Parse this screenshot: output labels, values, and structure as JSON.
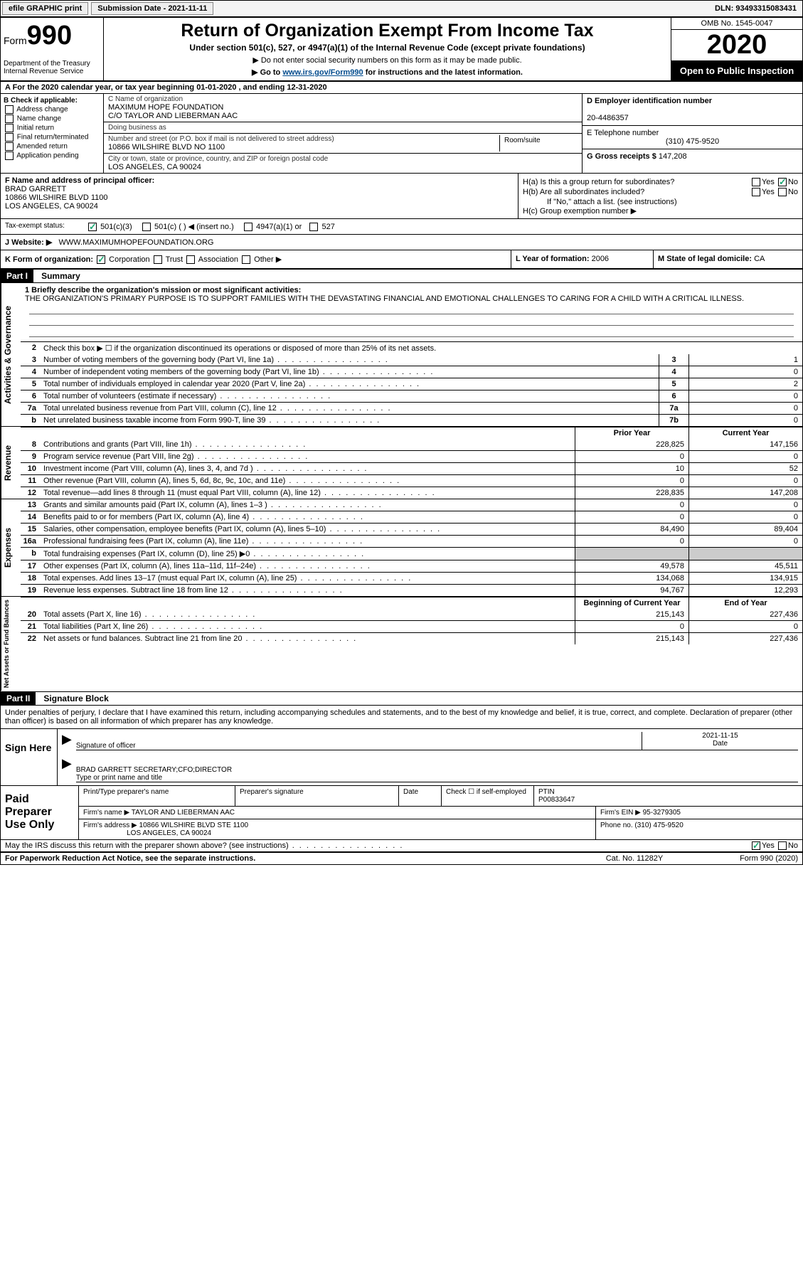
{
  "topbar": {
    "efile": "efile GRAPHIC print",
    "submission": "Submission Date - 2021-11-11",
    "dln": "DLN: 93493315083431"
  },
  "header": {
    "form_word": "Form",
    "form_num": "990",
    "dept": "Department of the Treasury\nInternal Revenue Service",
    "title": "Return of Organization Exempt From Income Tax",
    "sub": "Under section 501(c), 527, or 4947(a)(1) of the Internal Revenue Code (except private foundations)",
    "p2": "▶ Do not enter social security numbers on this form as it may be made public.",
    "p3_pre": "▶ Go to ",
    "p3_link": "www.irs.gov/Form990",
    "p3_post": " for instructions and the latest information.",
    "omb": "OMB No. 1545-0047",
    "year": "2020",
    "open": "Open to Public Inspection"
  },
  "rowA": "A For the 2020 calendar year, or tax year beginning 01-01-2020    , and ending 12-31-2020",
  "secB": {
    "label": "B Check if applicable:",
    "items": [
      "Address change",
      "Name change",
      "Initial return",
      "Final return/terminated",
      "Amended return",
      "Application pending"
    ]
  },
  "secC": {
    "name_lbl": "C Name of organization",
    "name1": "MAXIMUM HOPE FOUNDATION",
    "name2": "C/O TAYLOR AND LIEBERMAN AAC",
    "dba_lbl": "Doing business as",
    "dba": "",
    "street_lbl": "Number and street (or P.O. box if mail is not delivered to street address)",
    "street": "10866 WILSHIRE BLVD NO 1100",
    "room_lbl": "Room/suite",
    "city_lbl": "City or town, state or province, country, and ZIP or foreign postal code",
    "city": "LOS ANGELES, CA  90024"
  },
  "secD": {
    "ein_lbl": "D Employer identification number",
    "ein": "20-4486357",
    "tel_lbl": "E Telephone number",
    "tel": "(310) 475-9520",
    "g_lbl": "G Gross receipts $",
    "g_val": "147,208"
  },
  "secF": {
    "lbl": "F  Name and address of principal officer:",
    "name": "BRAD GARRETT",
    "addr1": "10866 WILSHIRE BLVD 1100",
    "addr2": "LOS ANGELES, CA  90024"
  },
  "secH": {
    "a": "H(a)  Is this a group return for subordinates?",
    "ayn": "No",
    "b": "H(b)  Are all subordinates included?",
    "bnote": "If \"No,\" attach a list. (see instructions)",
    "c": "H(c)  Group exemption number ▶"
  },
  "tax": {
    "lbl": "Tax-exempt status:",
    "opts": [
      "501(c)(3)",
      "501(c) (  ) ◀ (insert no.)",
      "4947(a)(1) or",
      "527"
    ]
  },
  "web": {
    "lbl": "J    Website: ▶",
    "val": "WWW.MAXIMUMHOPEFOUNDATION.ORG"
  },
  "klm": {
    "k": "K Form of organization:",
    "kopts": [
      "Corporation",
      "Trust",
      "Association",
      "Other ▶"
    ],
    "l_lbl": "L Year of formation:",
    "l_val": "2006",
    "m_lbl": "M State of legal domicile:",
    "m_val": "CA"
  },
  "part1": {
    "num": "Part I",
    "title": "Summary"
  },
  "mission": {
    "q": "1 Briefly describe the organization's mission or most significant activities:",
    "txt": "THE ORGANIZATION'S PRIMARY PURPOSE IS TO SUPPORT FAMILIES WITH THE DEVASTATING FINANCIAL AND EMOTIONAL CHALLENGES TO CARING FOR A CHILD WITH A CRITICAL ILLNESS."
  },
  "gov": {
    "l2": "Check this box ▶ ☐  if the organization discontinued its operations or disposed of more than 25% of its net assets.",
    "lines": [
      {
        "n": "3",
        "t": "Number of voting members of the governing body (Part VI, line 1a)",
        "b": "3",
        "v": "1"
      },
      {
        "n": "4",
        "t": "Number of independent voting members of the governing body (Part VI, line 1b)",
        "b": "4",
        "v": "0"
      },
      {
        "n": "5",
        "t": "Total number of individuals employed in calendar year 2020 (Part V, line 2a)",
        "b": "5",
        "v": "2"
      },
      {
        "n": "6",
        "t": "Total number of volunteers (estimate if necessary)",
        "b": "6",
        "v": "0"
      },
      {
        "n": "7a",
        "t": "Total unrelated business revenue from Part VIII, column (C), line 12",
        "b": "7a",
        "v": "0"
      },
      {
        "n": "b",
        "t": "Net unrelated business taxable income from Form 990-T, line 39",
        "b": "7b",
        "v": "0"
      }
    ]
  },
  "yrhdr": {
    "p": "Prior Year",
    "c": "Current Year"
  },
  "rev": [
    {
      "n": "8",
      "t": "Contributions and grants (Part VIII, line 1h)",
      "p": "228,825",
      "c": "147,156"
    },
    {
      "n": "9",
      "t": "Program service revenue (Part VIII, line 2g)",
      "p": "0",
      "c": "0"
    },
    {
      "n": "10",
      "t": "Investment income (Part VIII, column (A), lines 3, 4, and 7d )",
      "p": "10",
      "c": "52"
    },
    {
      "n": "11",
      "t": "Other revenue (Part VIII, column (A), lines 5, 6d, 8c, 9c, 10c, and 11e)",
      "p": "0",
      "c": "0"
    },
    {
      "n": "12",
      "t": "Total revenue—add lines 8 through 11 (must equal Part VIII, column (A), line 12)",
      "p": "228,835",
      "c": "147,208"
    }
  ],
  "exp": [
    {
      "n": "13",
      "t": "Grants and similar amounts paid (Part IX, column (A), lines 1–3 )",
      "p": "0",
      "c": "0"
    },
    {
      "n": "14",
      "t": "Benefits paid to or for members (Part IX, column (A), line 4)",
      "p": "0",
      "c": "0"
    },
    {
      "n": "15",
      "t": "Salaries, other compensation, employee benefits (Part IX, column (A), lines 5–10)",
      "p": "84,490",
      "c": "89,404"
    },
    {
      "n": "16a",
      "t": "Professional fundraising fees (Part IX, column (A), line 11e)",
      "p": "0",
      "c": "0"
    },
    {
      "n": "b",
      "t": "Total fundraising expenses (Part IX, column (D), line 25) ▶0",
      "p": "",
      "c": "",
      "grey": true
    },
    {
      "n": "17",
      "t": "Other expenses (Part IX, column (A), lines 11a–11d, 11f–24e)",
      "p": "49,578",
      "c": "45,511"
    },
    {
      "n": "18",
      "t": "Total expenses. Add lines 13–17 (must equal Part IX, column (A), line 25)",
      "p": "134,068",
      "c": "134,915"
    },
    {
      "n": "19",
      "t": "Revenue less expenses. Subtract line 18 from line 12",
      "p": "94,767",
      "c": "12,293"
    }
  ],
  "nethdr": {
    "p": "Beginning of Current Year",
    "c": "End of Year"
  },
  "net": [
    {
      "n": "20",
      "t": "Total assets (Part X, line 16)",
      "p": "215,143",
      "c": "227,436"
    },
    {
      "n": "21",
      "t": "Total liabilities (Part X, line 26)",
      "p": "0",
      "c": "0"
    },
    {
      "n": "22",
      "t": "Net assets or fund balances. Subtract line 21 from line 20",
      "p": "215,143",
      "c": "227,436"
    }
  ],
  "vtabs": {
    "gov": "Activities & Governance",
    "rev": "Revenue",
    "exp": "Expenses",
    "net": "Net Assets or Fund Balances"
  },
  "part2": {
    "num": "Part II",
    "title": "Signature Block"
  },
  "decl": "Under penalties of perjury, I declare that I have examined this return, including accompanying schedules and statements, and to the best of my knowledge and belief, it is true, correct, and complete. Declaration of preparer (other than officer) is based on all information of which preparer has any knowledge.",
  "sign": {
    "lbl": "Sign Here",
    "sig_lbl": "Signature of officer",
    "date_lbl": "Date",
    "date_val": "2021-11-15",
    "name": "BRAD GARRETT  SECRETARY;CFO;DIRECTOR",
    "name_lbl": "Type or print name and title"
  },
  "paid": {
    "lbl": "Paid Preparer Use Only",
    "h1": "Print/Type preparer's name",
    "h2": "Preparer's signature",
    "h3": "Date",
    "h4": "Check ☐ if self-employed",
    "h5_lbl": "PTIN",
    "h5_val": "P00833647",
    "firm_lbl": "Firm's name    ▶",
    "firm": "TAYLOR AND LIEBERMAN AAC",
    "ein_lbl": "Firm's EIN ▶",
    "ein": "95-3279305",
    "addr_lbl": "Firm's address ▶",
    "addr1": "10866 WILSHIRE BLVD STE 1100",
    "addr2": "LOS ANGELES, CA  90024",
    "phone_lbl": "Phone no.",
    "phone": "(310) 475-9520"
  },
  "may": "May the IRS discuss this return with the preparer shown above? (see instructions)",
  "foot": {
    "f1": "For Paperwork Reduction Act Notice, see the separate instructions.",
    "f2": "Cat. No. 11282Y",
    "f3": "Form 990 (2020)"
  }
}
